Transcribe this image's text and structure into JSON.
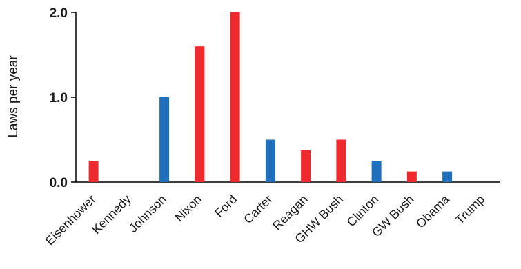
{
  "chart_data": {
    "type": "bar",
    "title": "",
    "xlabel": "",
    "ylabel": "Laws per year",
    "ylim": [
      0,
      2.0
    ],
    "yticks": [
      "0.0",
      "1.0",
      "2.0"
    ],
    "ytick_values": [
      0,
      1,
      2
    ],
    "grid": false,
    "legend": "none",
    "categories": [
      "Eisenhower",
      "Kennedy",
      "Johnson",
      "Nixon",
      "Ford",
      "Carter",
      "Reagan",
      "GHW Bush",
      "Clinton",
      "GW Bush",
      "Obama",
      "Trump"
    ],
    "values": [
      0.25,
      0,
      1.0,
      1.6,
      2.0,
      0.5,
      0.375,
      0.5,
      0.25,
      0.125,
      0.125,
      0
    ],
    "bar_colors": [
      "#ee2a2f",
      "#ee2a2f",
      "#1f6fbd",
      "#ee2a2f",
      "#ee2a2f",
      "#1f6fbd",
      "#ee2a2f",
      "#ee2a2f",
      "#1f6fbd",
      "#ee2a2f",
      "#1f6fbd",
      "#ee2a2f"
    ],
    "party_colors": {
      "republican": "#ee2a2f",
      "democrat": "#1f6fbd"
    }
  }
}
